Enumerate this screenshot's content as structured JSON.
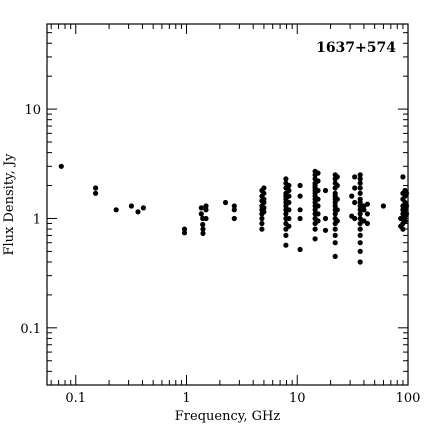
{
  "chart_data": {
    "type": "scatter",
    "title": "",
    "annotation": "1637+574",
    "xlabel": "Frequency, GHz",
    "ylabel": "Flux Density, Jy",
    "xscale": "log",
    "yscale": "log",
    "xlim": [
      0.055,
      100
    ],
    "ylim": [
      0.03,
      60
    ],
    "grid": false,
    "x_tick_labels": [
      {
        "value": 0.1,
        "label": "0.1"
      },
      {
        "value": 1,
        "label": "1"
      },
      {
        "value": 10,
        "label": "10"
      },
      {
        "value": 100,
        "label": "100"
      }
    ],
    "y_tick_labels": [
      {
        "value": 0.1,
        "label": "0.1"
      },
      {
        "value": 1,
        "label": "1"
      },
      {
        "value": 10,
        "label": "10"
      }
    ],
    "series": [
      {
        "points": [
          [
            0.074,
            3.0
          ],
          [
            0.151,
            1.9
          ],
          [
            0.151,
            1.7
          ],
          [
            0.232,
            1.2
          ],
          [
            0.318,
            1.3
          ],
          [
            0.365,
            1.15
          ],
          [
            0.408,
            1.25
          ],
          [
            0.96,
            0.8
          ],
          [
            0.96,
            0.74
          ],
          [
            1.36,
            1.25
          ],
          [
            1.36,
            1.1
          ],
          [
            1.4,
            1.0
          ],
          [
            1.4,
            0.88
          ],
          [
            1.41,
            0.8
          ],
          [
            1.41,
            0.73
          ],
          [
            1.5,
            1.3
          ],
          [
            1.5,
            1.2
          ],
          [
            1.5,
            1.0
          ],
          [
            2.25,
            1.4
          ],
          [
            2.7,
            1.3
          ],
          [
            2.7,
            1.2
          ],
          [
            2.7,
            1.0
          ],
          [
            4.8,
            1.8
          ],
          [
            4.8,
            1.6
          ],
          [
            4.8,
            1.45
          ],
          [
            4.8,
            1.3
          ],
          [
            4.8,
            1.2
          ],
          [
            4.8,
            1.1
          ],
          [
            4.8,
            1.0
          ],
          [
            4.8,
            0.9
          ],
          [
            4.8,
            0.8
          ],
          [
            5.0,
            1.9
          ],
          [
            5.0,
            1.7
          ],
          [
            5.0,
            1.5
          ],
          [
            5.0,
            1.4
          ],
          [
            5.0,
            1.25
          ],
          [
            5.0,
            1.15
          ],
          [
            7.9,
            2.3
          ],
          [
            7.9,
            2.1
          ],
          [
            7.9,
            1.9
          ],
          [
            7.9,
            1.7
          ],
          [
            7.9,
            1.6
          ],
          [
            7.9,
            1.5
          ],
          [
            7.9,
            1.4
          ],
          [
            7.9,
            1.3
          ],
          [
            7.9,
            1.2
          ],
          [
            7.9,
            1.1
          ],
          [
            7.9,
            1.0
          ],
          [
            7.9,
            0.9
          ],
          [
            7.9,
            0.8
          ],
          [
            7.9,
            0.7
          ],
          [
            7.9,
            0.57
          ],
          [
            8.4,
            2.0
          ],
          [
            8.4,
            1.8
          ],
          [
            8.4,
            1.6
          ],
          [
            8.4,
            1.4
          ],
          [
            8.4,
            1.2
          ],
          [
            8.4,
            1.0
          ],
          [
            8.4,
            0.85
          ],
          [
            10.6,
            2.0
          ],
          [
            10.6,
            1.6
          ],
          [
            10.6,
            1.2
          ],
          [
            10.6,
            1.0
          ],
          [
            10.6,
            0.52
          ],
          [
            14.5,
            2.7
          ],
          [
            14.5,
            2.5
          ],
          [
            14.5,
            2.3
          ],
          [
            14.5,
            2.1
          ],
          [
            14.5,
            2.0
          ],
          [
            14.5,
            1.9
          ],
          [
            14.5,
            1.8
          ],
          [
            14.5,
            1.7
          ],
          [
            14.5,
            1.6
          ],
          [
            14.5,
            1.5
          ],
          [
            14.5,
            1.4
          ],
          [
            14.5,
            1.3
          ],
          [
            14.5,
            1.2
          ],
          [
            14.5,
            1.1
          ],
          [
            14.5,
            1.0
          ],
          [
            14.5,
            0.9
          ],
          [
            14.5,
            0.8
          ],
          [
            14.5,
            0.65
          ],
          [
            15.4,
            2.6
          ],
          [
            15.4,
            2.2
          ],
          [
            15.4,
            1.8
          ],
          [
            15.4,
            1.5
          ],
          [
            15.4,
            1.3
          ],
          [
            15.4,
            1.1
          ],
          [
            15.4,
            0.95
          ],
          [
            18.0,
            1.8
          ],
          [
            18.0,
            1.0
          ],
          [
            18.0,
            0.78
          ],
          [
            22.0,
            2.5
          ],
          [
            22.0,
            2.3
          ],
          [
            22.0,
            2.1
          ],
          [
            22.0,
            1.9
          ],
          [
            22.0,
            1.7
          ],
          [
            22.0,
            1.6
          ],
          [
            22.0,
            1.5
          ],
          [
            22.0,
            1.4
          ],
          [
            22.0,
            1.3
          ],
          [
            22.0,
            1.2
          ],
          [
            22.0,
            1.1
          ],
          [
            22.0,
            1.0
          ],
          [
            22.0,
            0.9
          ],
          [
            22.0,
            0.8
          ],
          [
            22.0,
            0.7
          ],
          [
            22.0,
            0.6
          ],
          [
            22.0,
            0.45
          ],
          [
            23.0,
            2.4
          ],
          [
            23.0,
            2.0
          ],
          [
            23.0,
            1.5
          ],
          [
            23.0,
            1.2
          ],
          [
            23.0,
            0.95
          ],
          [
            31.0,
            1.6
          ],
          [
            31.0,
            1.05
          ],
          [
            33.0,
            2.4
          ],
          [
            33.0,
            1.9
          ],
          [
            33.0,
            1.4
          ],
          [
            33.0,
            1.0
          ],
          [
            37.0,
            2.5
          ],
          [
            37.0,
            2.3
          ],
          [
            37.0,
            2.1
          ],
          [
            37.0,
            1.9
          ],
          [
            37.0,
            1.7
          ],
          [
            37.0,
            1.5
          ],
          [
            37.0,
            1.4
          ],
          [
            37.0,
            1.3
          ],
          [
            37.0,
            1.2
          ],
          [
            37.0,
            1.1
          ],
          [
            37.0,
            1.0
          ],
          [
            37.0,
            0.9
          ],
          [
            37.0,
            0.8
          ],
          [
            37.0,
            0.7
          ],
          [
            37.0,
            0.6
          ],
          [
            37.0,
            0.5
          ],
          [
            37.0,
            0.4
          ],
          [
            40.0,
            1.3
          ],
          [
            40.0,
            1.2
          ],
          [
            40.0,
            0.95
          ],
          [
            43.0,
            1.35
          ],
          [
            43.0,
            1.1
          ],
          [
            43.0,
            0.9
          ],
          [
            60.0,
            1.3
          ],
          [
            86.0,
            1.0
          ],
          [
            86.0,
            0.85
          ],
          [
            90.0,
            2.4
          ],
          [
            90.0,
            1.7
          ],
          [
            90.0,
            1.5
          ],
          [
            90.0,
            1.3
          ],
          [
            90.0,
            1.2
          ],
          [
            90.0,
            1.1
          ],
          [
            90.0,
            1.0
          ],
          [
            90.0,
            0.9
          ],
          [
            90.0,
            0.8
          ],
          [
            94.0,
            1.8
          ],
          [
            94.0,
            1.6
          ],
          [
            94.0,
            1.4
          ],
          [
            94.0,
            1.2
          ],
          [
            94.0,
            1.05
          ],
          [
            94.0,
            0.95
          ],
          [
            97.0,
            1.7
          ],
          [
            97.0,
            1.3
          ],
          [
            97.0,
            1.1
          ]
        ]
      }
    ]
  }
}
